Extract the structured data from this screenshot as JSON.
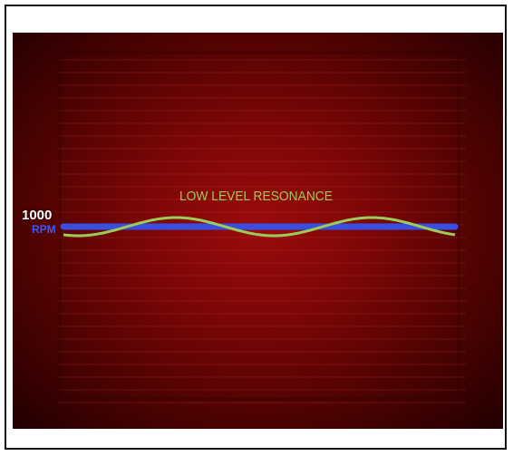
{
  "figure": {
    "wave_label": "LOW LEVEL RESONANCE",
    "rpm_value": "1000",
    "rpm_unit": "RPM"
  },
  "colors": {
    "background_red": "#8b0a0a",
    "baseline_blue": "#3a4fe0",
    "wave_green": "#9ccc5a",
    "rpm_value_text": "#ffffff",
    "rpm_unit_text": "#3f56ff",
    "frame_border": "#111111"
  },
  "wave": {
    "type": "sine",
    "cycles": 2
  }
}
